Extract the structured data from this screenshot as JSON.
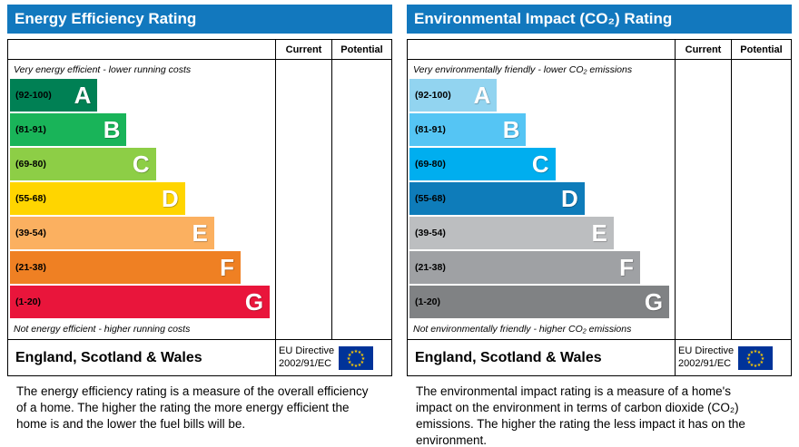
{
  "page": {
    "background": "#ffffff",
    "header_color": "#1278be"
  },
  "charts": [
    {
      "title": "Energy Efficiency Rating",
      "columns": {
        "current": "Current",
        "potential": "Potential"
      },
      "top_note": "Very energy efficient - lower running costs",
      "bottom_note": "Not energy efficient - higher running costs",
      "bands": [
        {
          "range": "(92-100)",
          "letter": "A",
          "color": "#008054",
          "width_pct": 33
        },
        {
          "range": "(81-91)",
          "letter": "B",
          "color": "#19b459",
          "width_pct": 44
        },
        {
          "range": "(69-80)",
          "letter": "C",
          "color": "#8dce46",
          "width_pct": 55
        },
        {
          "range": "(55-68)",
          "letter": "D",
          "color": "#ffd500",
          "width_pct": 66
        },
        {
          "range": "(39-54)",
          "letter": "E",
          "color": "#fbb060",
          "width_pct": 77
        },
        {
          "range": "(21-38)",
          "letter": "F",
          "color": "#ef8023",
          "width_pct": 87
        },
        {
          "range": "(1-20)",
          "letter": "G",
          "color": "#e9153b",
          "width_pct": 98
        }
      ],
      "footer": {
        "region": "England, Scotland & Wales",
        "directive_line1": "EU Directive",
        "directive_line2": "2002/91/EC",
        "flag_colors": {
          "field": "#003399",
          "stars": "#ffcc00"
        }
      },
      "description": "The energy efficiency rating is a measure of the overall efficiency of a home. The higher the rating the more energy efficient the home is and the lower the fuel bills will be."
    },
    {
      "title": "Environmental Impact (CO₂) Rating",
      "columns": {
        "current": "Current",
        "potential": "Potential"
      },
      "top_note": "Very environmentally friendly - lower CO₂ emissions",
      "bottom_note": "Not environmentally friendly - higher CO₂ emissions",
      "bands": [
        {
          "range": "(92-100)",
          "letter": "A",
          "color": "#92d4f0",
          "width_pct": 33
        },
        {
          "range": "(81-91)",
          "letter": "B",
          "color": "#55c5f4",
          "width_pct": 44
        },
        {
          "range": "(69-80)",
          "letter": "C",
          "color": "#00aeef",
          "width_pct": 55
        },
        {
          "range": "(55-68)",
          "letter": "D",
          "color": "#0e7cba",
          "width_pct": 66
        },
        {
          "range": "(39-54)",
          "letter": "E",
          "color": "#bcbec0",
          "width_pct": 77
        },
        {
          "range": "(21-38)",
          "letter": "F",
          "color": "#9fa1a4",
          "width_pct": 87
        },
        {
          "range": "(1-20)",
          "letter": "G",
          "color": "#808284",
          "width_pct": 98
        }
      ],
      "footer": {
        "region": "England, Scotland & Wales",
        "directive_line1": "EU Directive",
        "directive_line2": "2002/91/EC",
        "flag_colors": {
          "field": "#003399",
          "stars": "#ffcc00"
        }
      },
      "description": "The environmental impact rating is a measure of a home's impact on the environment in terms of carbon dioxide (CO₂) emissions. The higher the rating the less impact it has on the environment."
    }
  ],
  "chart_data": [
    {
      "type": "bar",
      "title": "Energy Efficiency Rating",
      "categories": [
        "A (92-100)",
        "B (81-91)",
        "C (69-80)",
        "D (55-68)",
        "E (39-54)",
        "F (21-38)",
        "G (1-20)"
      ],
      "values": [
        33,
        44,
        55,
        66,
        77,
        87,
        98
      ],
      "value_note": "relative band widths as % of plot width; no Current/Potential markers shown",
      "columns": [
        "Current",
        "Potential"
      ],
      "colors": [
        "#008054",
        "#19b459",
        "#8dce46",
        "#ffd500",
        "#fbb060",
        "#ef8023",
        "#e9153b"
      ]
    },
    {
      "type": "bar",
      "title": "Environmental Impact (CO₂) Rating",
      "categories": [
        "A (92-100)",
        "B (81-91)",
        "C (69-80)",
        "D (55-68)",
        "E (39-54)",
        "F (21-38)",
        "G (1-20)"
      ],
      "values": [
        33,
        44,
        55,
        66,
        77,
        87,
        98
      ],
      "value_note": "relative band widths as % of plot width; no Current/Potential markers shown",
      "columns": [
        "Current",
        "Potential"
      ],
      "colors": [
        "#92d4f0",
        "#55c5f4",
        "#00aeef",
        "#0e7cba",
        "#bcbec0",
        "#9fa1a4",
        "#808284"
      ]
    }
  ]
}
